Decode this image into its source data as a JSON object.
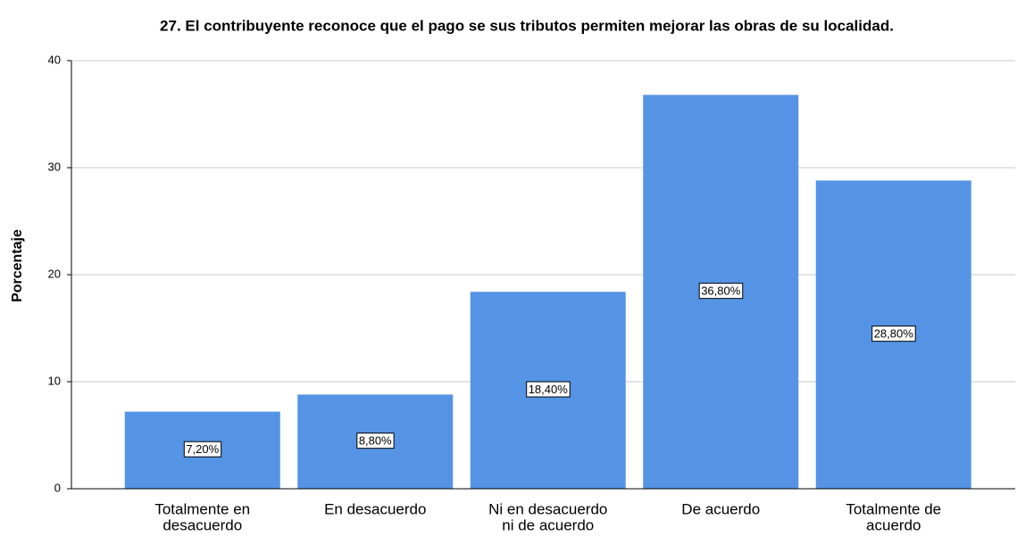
{
  "chart_data": {
    "type": "bar",
    "title": "27. El contribuyente reconoce que el pago se sus tributos permiten mejorar las obras de su localidad.",
    "y_label": "Porcentaje",
    "categories": [
      [
        "Totalmente en",
        "desacuerdo"
      ],
      [
        "En desacuerdo"
      ],
      [
        "Ni en desacuerdo",
        "ni de acuerdo"
      ],
      [
        "De acuerdo"
      ],
      [
        "Totalmente de",
        "acuerdo"
      ]
    ],
    "values": [
      7.2,
      8.8,
      18.4,
      36.8,
      28.8
    ],
    "value_labels": [
      "7,20%",
      "8,80%",
      "18,40%",
      "36,80%",
      "28,80%"
    ],
    "color": "#5594e4",
    "ylim": [
      0,
      40
    ],
    "yticks": [
      0,
      10,
      20,
      30,
      40
    ],
    "grid": true
  }
}
